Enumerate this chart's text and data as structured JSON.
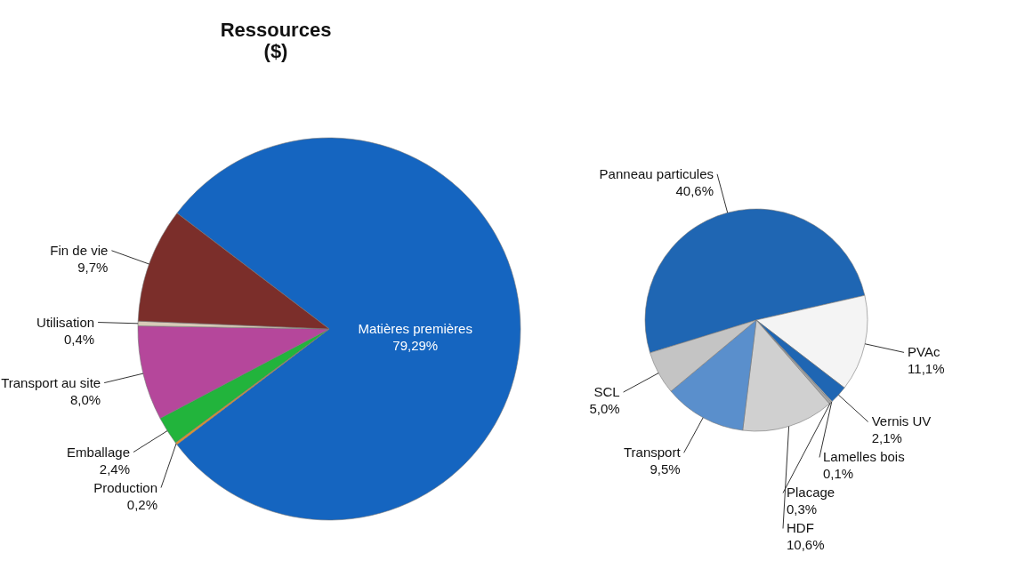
{
  "chart_data": [
    {
      "type": "pie",
      "title": "Ressources\n($)",
      "categories": [
        "Matières premières",
        "Production",
        "Emballage",
        "Transport au site",
        "Utilisation",
        "Fin de vie"
      ],
      "values": [
        79.29,
        0.2,
        2.4,
        8.0,
        0.4,
        9.7
      ],
      "value_labels": [
        "79,29%",
        "0,2%",
        "2,4%",
        "8,0%",
        "0,4%",
        "9,7%"
      ],
      "colors": [
        "#1565c0",
        "#e0902a",
        "#22b43c",
        "#b5479b",
        "#d8cbb8",
        "#7b2e2a"
      ],
      "legend": false
    },
    {
      "type": "pie",
      "categories": [
        "Panneau particules",
        "PVAc",
        "Vernis UV",
        "Lamelles bois",
        "Placage",
        "HDF",
        "Transport",
        "SCL"
      ],
      "values": [
        40.6,
        11.1,
        2.1,
        0.1,
        0.3,
        10.6,
        9.5,
        5.0
      ],
      "value_labels": [
        "40,6%",
        "11,1%",
        "2,1%",
        "0,1%",
        "0,3%",
        "10,6%",
        "9,5%",
        "5,0%"
      ],
      "colors": [
        "#1f66b3",
        "#f4f4f4",
        "#1f66b3",
        "#d9d9d9",
        "#a6a6a6",
        "#d0d0d0",
        "#5a8fcc",
        "#c4c4c4"
      ],
      "legend": false
    }
  ]
}
